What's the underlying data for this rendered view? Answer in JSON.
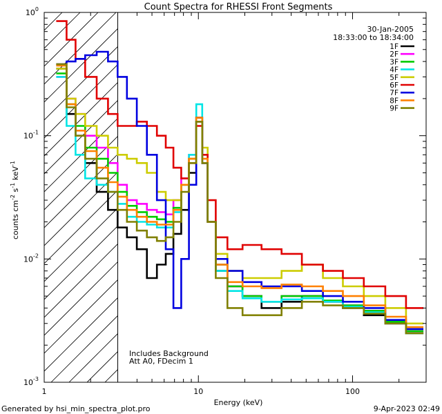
{
  "chart_data": {
    "type": "line",
    "title": "Count Spectra for RHESSI Front Segments",
    "xlabel": "Energy (keV)",
    "ylabel_parts": [
      "counts cm",
      "-2",
      " s",
      "-1",
      " keV",
      "-1"
    ],
    "x_scale": "log",
    "y_scale": "log",
    "xlim": [
      1,
      300
    ],
    "ylim": [
      0.001,
      1
    ],
    "x_ticks": [
      {
        "value": 1,
        "label": "1"
      },
      {
        "value": 10,
        "label": "10"
      },
      {
        "value": 100,
        "label": "100"
      }
    ],
    "y_ticks": [
      {
        "value": 0.001,
        "base": "10",
        "exp": "-3"
      },
      {
        "value": 0.01,
        "base": "10",
        "exp": "-2"
      },
      {
        "value": 0.1,
        "base": "10",
        "exp": "-1"
      },
      {
        "value": 1,
        "base": "10",
        "exp": "0"
      }
    ],
    "date": "30-Jan-2005",
    "time_range": "18:33:00 to 18:34:00",
    "hatched_region_xmax": 3,
    "notes": [
      "Includes Background",
      "Att A0, FDecim 1"
    ],
    "series": [
      {
        "name": "1F",
        "color": "#000000",
        "x": [
          1.3,
          1.5,
          1.7,
          2.0,
          2.4,
          2.8,
          3.2,
          3.7,
          4.3,
          5.0,
          5.8,
          6.5,
          7.3,
          8.2,
          9.2,
          10.2,
          11.0,
          12.0,
          14.0,
          17.0,
          22.0,
          30.0,
          40.0,
          55.0,
          75.0,
          100.0,
          140.0,
          190.0,
          260.0
        ],
        "values": [
          0.35,
          0.15,
          0.1,
          0.06,
          0.035,
          0.025,
          0.018,
          0.015,
          0.012,
          0.007,
          0.009,
          0.011,
          0.016,
          0.025,
          0.05,
          0.13,
          0.06,
          0.02,
          0.008,
          0.006,
          0.005,
          0.004,
          0.0045,
          0.005,
          0.0045,
          0.004,
          0.0035,
          0.003,
          0.0025
        ]
      },
      {
        "name": "2F",
        "color": "#ff00ff",
        "x": [
          1.3,
          1.5,
          1.7,
          2.0,
          2.4,
          2.8,
          3.2,
          3.7,
          4.3,
          5.0,
          5.8,
          6.5,
          7.3,
          8.2,
          9.2,
          10.2,
          11.0,
          12.0,
          14.0,
          17.0,
          22.0,
          30.0,
          40.0,
          55.0,
          75.0,
          100.0,
          140.0,
          190.0,
          260.0
        ],
        "values": [
          0.3,
          0.2,
          0.15,
          0.1,
          0.08,
          0.06,
          0.04,
          0.03,
          0.028,
          0.025,
          0.024,
          0.023,
          0.03,
          0.045,
          0.07,
          0.13,
          0.06,
          0.02,
          0.009,
          0.006,
          0.005,
          0.0045,
          0.005,
          0.005,
          0.0045,
          0.0042,
          0.0038,
          0.003,
          0.0026
        ]
      },
      {
        "name": "3F",
        "color": "#00cc00",
        "x": [
          1.3,
          1.5,
          1.7,
          2.0,
          2.4,
          2.8,
          3.2,
          3.7,
          4.3,
          5.0,
          5.8,
          6.5,
          7.3,
          8.2,
          9.2,
          10.2,
          11.0,
          12.0,
          14.0,
          17.0,
          22.0,
          30.0,
          40.0,
          55.0,
          75.0,
          100.0,
          140.0,
          190.0,
          260.0
        ],
        "values": [
          0.32,
          0.18,
          0.12,
          0.08,
          0.065,
          0.05,
          0.035,
          0.027,
          0.024,
          0.022,
          0.021,
          0.02,
          0.026,
          0.04,
          0.065,
          0.14,
          0.06,
          0.02,
          0.009,
          0.006,
          0.005,
          0.0045,
          0.005,
          0.005,
          0.0046,
          0.0042,
          0.0038,
          0.0031,
          0.0026
        ]
      },
      {
        "name": "4F",
        "color": "#00e5e5",
        "x": [
          1.3,
          1.5,
          1.7,
          2.0,
          2.4,
          2.8,
          3.2,
          3.7,
          4.3,
          5.0,
          5.8,
          6.5,
          7.3,
          8.2,
          9.2,
          10.2,
          11.0,
          12.0,
          14.0,
          17.0,
          22.0,
          30.0,
          40.0,
          55.0,
          75.0,
          100.0,
          140.0,
          190.0,
          260.0
        ],
        "values": [
          0.3,
          0.12,
          0.07,
          0.045,
          0.04,
          0.035,
          0.028,
          0.022,
          0.02,
          0.019,
          0.018,
          0.018,
          0.024,
          0.04,
          0.07,
          0.18,
          0.07,
          0.02,
          0.008,
          0.0055,
          0.0048,
          0.0045,
          0.0047,
          0.0048,
          0.0045,
          0.0041,
          0.0037,
          0.003,
          0.0025
        ]
      },
      {
        "name": "5F",
        "color": "#cccc00",
        "x": [
          1.3,
          1.5,
          1.7,
          2.0,
          2.4,
          2.8,
          3.2,
          3.7,
          4.3,
          5.0,
          5.8,
          6.5,
          7.3,
          8.2,
          9.2,
          10.2,
          11.0,
          12.0,
          14.0,
          17.0,
          22.0,
          30.0,
          40.0,
          55.0,
          75.0,
          100.0,
          140.0,
          190.0,
          260.0
        ],
        "values": [
          0.35,
          0.2,
          0.15,
          0.12,
          0.1,
          0.08,
          0.07,
          0.065,
          0.06,
          0.05,
          0.035,
          0.03,
          0.03,
          0.04,
          0.065,
          0.13,
          0.08,
          0.02,
          0.011,
          0.008,
          0.007,
          0.007,
          0.008,
          0.009,
          0.007,
          0.006,
          0.005,
          0.004,
          0.003
        ]
      },
      {
        "name": "6F",
        "color": "#e00000",
        "x": [
          1.3,
          1.5,
          1.7,
          2.0,
          2.4,
          2.8,
          3.2,
          3.7,
          4.3,
          5.0,
          5.8,
          6.5,
          7.3,
          8.2,
          9.2,
          10.2,
          11.0,
          12.0,
          14.0,
          17.0,
          22.0,
          30.0,
          40.0,
          55.0,
          75.0,
          100.0,
          140.0,
          190.0,
          260.0
        ],
        "values": [
          0.85,
          0.6,
          0.42,
          0.3,
          0.2,
          0.15,
          0.12,
          0.12,
          0.13,
          0.12,
          0.1,
          0.08,
          0.055,
          0.045,
          0.06,
          0.12,
          0.07,
          0.03,
          0.015,
          0.012,
          0.013,
          0.012,
          0.011,
          0.009,
          0.008,
          0.007,
          0.006,
          0.005,
          0.004
        ]
      },
      {
        "name": "7F",
        "color": "#0000e0",
        "x": [
          1.3,
          1.5,
          1.7,
          2.0,
          2.4,
          2.8,
          3.2,
          3.7,
          4.3,
          5.0,
          5.8,
          6.5,
          7.3,
          8.2,
          9.2,
          10.2,
          11.0,
          12.0,
          14.0,
          17.0,
          22.0,
          30.0,
          40.0,
          55.0,
          75.0,
          100.0,
          140.0,
          190.0,
          260.0
        ],
        "values": [
          0.38,
          0.4,
          0.42,
          0.45,
          0.48,
          0.4,
          0.3,
          0.2,
          0.12,
          0.07,
          0.03,
          0.012,
          0.004,
          0.01,
          0.04,
          0.14,
          0.06,
          0.02,
          0.01,
          0.008,
          0.0065,
          0.006,
          0.006,
          0.0055,
          0.005,
          0.0045,
          0.004,
          0.0032,
          0.0027
        ]
      },
      {
        "name": "8F",
        "color": "#ff8000",
        "x": [
          1.3,
          1.5,
          1.7,
          2.0,
          2.4,
          2.8,
          3.2,
          3.7,
          4.3,
          5.0,
          5.8,
          6.5,
          7.3,
          8.2,
          9.2,
          10.2,
          11.0,
          12.0,
          14.0,
          17.0,
          22.0,
          30.0,
          40.0,
          55.0,
          75.0,
          100.0,
          140.0,
          190.0,
          260.0
        ],
        "values": [
          0.37,
          0.18,
          0.11,
          0.075,
          0.055,
          0.042,
          0.032,
          0.025,
          0.022,
          0.02,
          0.019,
          0.019,
          0.025,
          0.04,
          0.065,
          0.14,
          0.065,
          0.02,
          0.009,
          0.0065,
          0.006,
          0.0058,
          0.0062,
          0.006,
          0.0055,
          0.005,
          0.0042,
          0.0034,
          0.0028
        ]
      },
      {
        "name": "9F",
        "color": "#808000",
        "x": [
          1.3,
          1.5,
          1.7,
          2.0,
          2.4,
          2.8,
          3.2,
          3.7,
          4.3,
          5.0,
          5.8,
          6.5,
          7.3,
          8.2,
          9.2,
          10.2,
          11.0,
          12.0,
          14.0,
          17.0,
          22.0,
          30.0,
          40.0,
          55.0,
          75.0,
          100.0,
          140.0,
          190.0,
          260.0
        ],
        "values": [
          0.38,
          0.17,
          0.1,
          0.065,
          0.045,
          0.035,
          0.025,
          0.02,
          0.017,
          0.015,
          0.014,
          0.015,
          0.02,
          0.035,
          0.06,
          0.13,
          0.06,
          0.02,
          0.007,
          0.004,
          0.0035,
          0.0035,
          0.004,
          0.0045,
          0.0042,
          0.004,
          0.0036,
          0.003,
          0.0025
        ]
      }
    ]
  },
  "footer": {
    "generated_by": "Generated by hsi_min_spectra_plot.pro",
    "timestamp": "9-Apr-2023 02:49"
  }
}
